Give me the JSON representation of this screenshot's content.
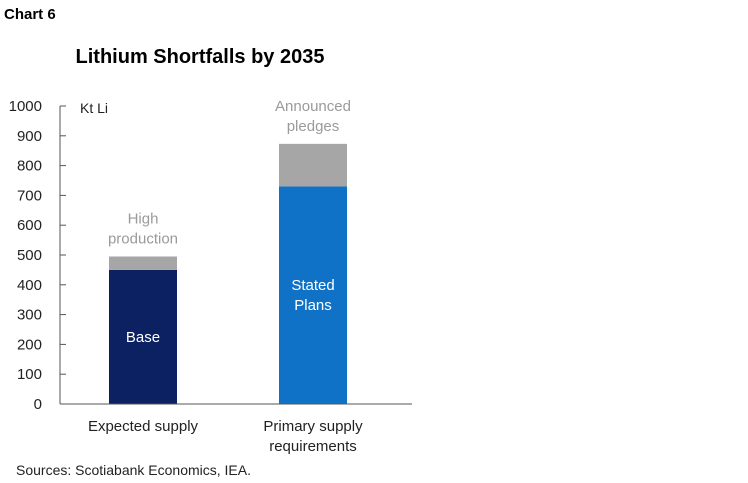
{
  "chart_label": "Chart 6",
  "chart_data": {
    "type": "bar",
    "stacked": true,
    "title": "Lithium Shortfalls by 2035",
    "unit_label": "Kt Li",
    "ylim": [
      0,
      1000
    ],
    "yticks": [
      "0",
      "100",
      "200",
      "300",
      "400",
      "500",
      "600",
      "700",
      "800",
      "900",
      "1000"
    ],
    "categories": [
      {
        "lines": [
          "Expected supply"
        ]
      },
      {
        "lines": [
          "Primary supply",
          "requirements"
        ]
      }
    ],
    "bars": [
      {
        "segments": [
          {
            "label_lines": [
              "Base"
            ],
            "value": 450,
            "color": "#0b2162",
            "label_color": "#ffffff",
            "label_position": "inside"
          },
          {
            "label_lines": [
              "High",
              "production"
            ],
            "value": 45,
            "color": "#a6a6a6",
            "label_color": "#9a9a9a",
            "label_position": "above"
          }
        ]
      },
      {
        "segments": [
          {
            "label_lines": [
              "Stated",
              "Plans"
            ],
            "value": 730,
            "color": "#0f72c6",
            "label_color": "#ffffff",
            "label_position": "inside"
          },
          {
            "label_lines": [
              "Announced",
              "pledges"
            ],
            "value": 143,
            "color": "#a6a6a6",
            "label_color": "#9a9a9a",
            "label_position": "above"
          }
        ]
      }
    ],
    "legend": "none",
    "grid": false
  },
  "source": "Sources: Scotiabank Economics, IEA."
}
